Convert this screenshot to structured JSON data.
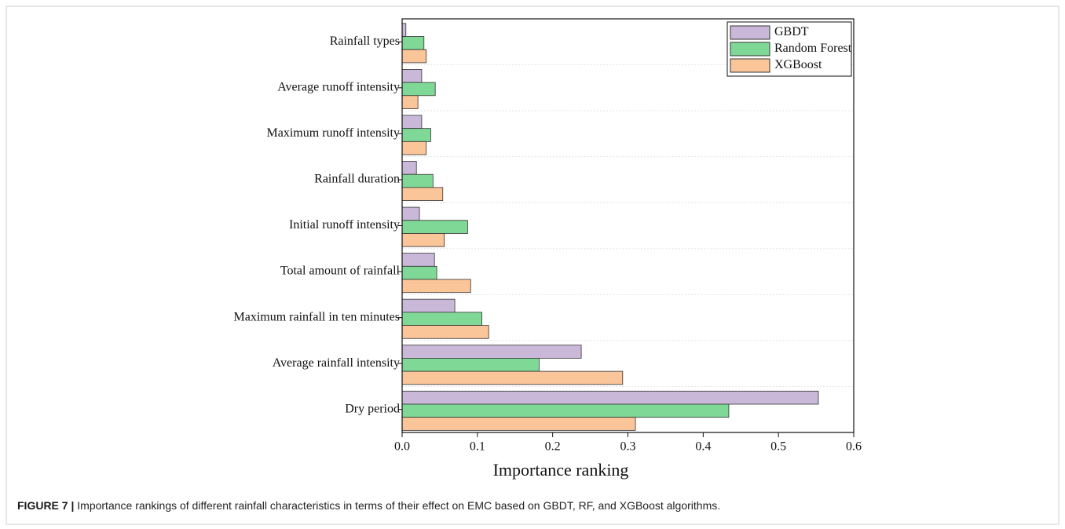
{
  "chart_data": {
    "type": "hbar",
    "x_label": "Importance ranking",
    "categories": [
      "Rainfall types",
      "Average runoff intensity",
      "Maximum runoff intensity",
      "Rainfall duration",
      "Initial runoff intensity",
      "Total amount of rainfall",
      "Maximum rainfall in ten minutes",
      "Average rainfall intensity",
      "Dry period"
    ],
    "series": [
      {
        "name": "GBDT",
        "color": "#c9b8d8",
        "values": [
          0.005,
          0.026,
          0.026,
          0.019,
          0.023,
          0.043,
          0.07,
          0.238,
          0.553
        ]
      },
      {
        "name": "Random Forest",
        "color": "#7fd896",
        "values": [
          0.029,
          0.044,
          0.038,
          0.041,
          0.087,
          0.046,
          0.106,
          0.182,
          0.434
        ]
      },
      {
        "name": "XGBoost",
        "color": "#fbc59a",
        "values": [
          0.032,
          0.021,
          0.032,
          0.054,
          0.056,
          0.091,
          0.115,
          0.293,
          0.31
        ]
      }
    ],
    "xlim": [
      0,
      0.6
    ],
    "xticks": [
      {
        "value": 0,
        "label": "0.0"
      },
      0.1,
      0.2,
      0.3,
      0.4,
      0.5,
      0.6
    ],
    "legend": "top-right"
  },
  "caption": {
    "label": "FIGURE 7 |",
    "text": "Importance rankings of different rainfall characteristics in terms of their effect on EMC based on GBDT, RF, and XGBoost algorithms."
  }
}
